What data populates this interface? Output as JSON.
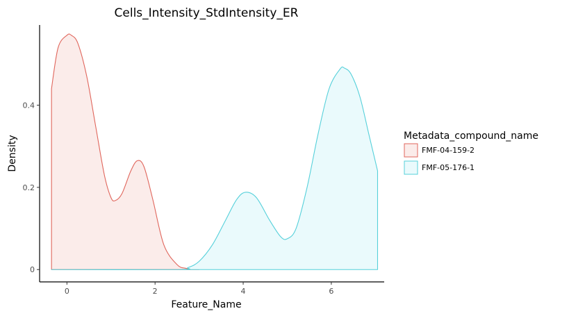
{
  "chart_data": {
    "type": "area",
    "title": "Cells_Intensity_StdIntensity_ER",
    "xlabel": "Feature_Name",
    "ylabel": "Density",
    "xlim": [
      -0.62,
      7.2
    ],
    "ylim": [
      -0.03,
      0.595
    ],
    "x_ticks": [
      0,
      2,
      4,
      6
    ],
    "y_ticks": [
      0,
      0.2,
      0.4
    ],
    "x_tick_labels": [
      "0",
      "2",
      "4",
      "6"
    ],
    "y_tick_labels": [
      "0",
      "0.2",
      "0.4"
    ],
    "grid": false,
    "legend": {
      "title": "Metadata_compound_name",
      "placement": "right"
    },
    "series": [
      {
        "name": "FMF-04-159-2",
        "stroke": "#e0665c",
        "fill": "#fbecea",
        "x": [
          -0.35,
          -0.2,
          0.0,
          0.1,
          0.25,
          0.45,
          0.65,
          0.85,
          1.0,
          1.1,
          1.25,
          1.45,
          1.6,
          1.75,
          1.95,
          2.2,
          2.5,
          2.7,
          2.85,
          3.0
        ],
        "y": [
          0.44,
          0.54,
          0.57,
          0.57,
          0.55,
          0.47,
          0.35,
          0.23,
          0.175,
          0.168,
          0.185,
          0.24,
          0.265,
          0.25,
          0.17,
          0.06,
          0.012,
          0.003,
          0.001,
          0.0
        ]
      },
      {
        "name": "FMF-05-176-1",
        "stroke": "#55d0da",
        "fill": "#eafafc",
        "x": [
          -0.35,
          2.5,
          2.75,
          3.0,
          3.3,
          3.6,
          3.85,
          4.05,
          4.3,
          4.6,
          4.85,
          5.0,
          5.2,
          5.45,
          5.7,
          5.95,
          6.2,
          6.3,
          6.45,
          6.65,
          6.85,
          7.05
        ],
        "y": [
          0.0,
          0.0,
          0.005,
          0.02,
          0.06,
          0.12,
          0.17,
          0.188,
          0.175,
          0.12,
          0.08,
          0.075,
          0.1,
          0.2,
          0.33,
          0.44,
          0.488,
          0.49,
          0.475,
          0.42,
          0.33,
          0.24
        ]
      }
    ]
  }
}
